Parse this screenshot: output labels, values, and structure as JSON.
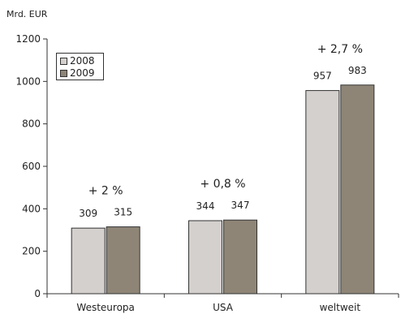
{
  "chart_data": {
    "type": "bar",
    "unit_label": "Mrd. EUR",
    "categories": [
      "Westeuropa",
      "USA",
      "weltweit"
    ],
    "series": [
      {
        "name": "2008",
        "values": [
          309,
          344,
          957
        ],
        "color": "#d4d0cd"
      },
      {
        "name": "2009",
        "values": [
          315,
          347,
          983
        ],
        "color": "#8e8577"
      }
    ],
    "growth_labels": [
      "+ 2 %",
      "+ 0,8 %",
      "+ 2,7 %"
    ],
    "yticks": [
      0,
      200,
      400,
      600,
      800,
      1000,
      1200
    ],
    "ylim": [
      0,
      1200
    ],
    "legend_position": "top-left",
    "grid": false
  }
}
